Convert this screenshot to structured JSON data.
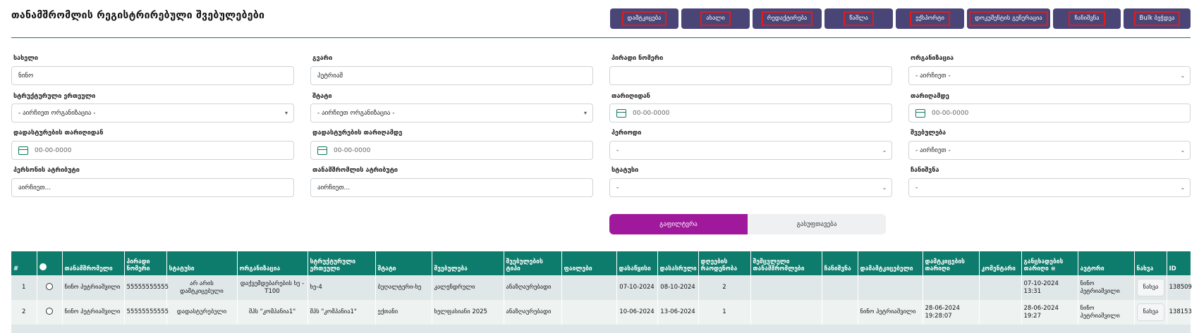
{
  "page": {
    "title": "თანამშრომლის რეგისტრირებული შვებულებები"
  },
  "toolbar": {
    "buttons": [
      {
        "label": "დამტკიცება"
      },
      {
        "label": "ახალი"
      },
      {
        "label": "რედაქტირება"
      },
      {
        "label": "წაშლა"
      },
      {
        "label": "ექსპორტი"
      },
      {
        "label": "დოკუმენტის გენერაცია"
      },
      {
        "label": "ჩანიშვნა"
      },
      {
        "label": "Bulk ბეჭდვა"
      }
    ]
  },
  "filters": {
    "first_name": {
      "label": "სახელი",
      "value": "ნინო"
    },
    "last_name": {
      "label": "გვარი",
      "value": "პეტრიაშ"
    },
    "personal_number": {
      "label": "პირადი ნომერი",
      "value": ""
    },
    "organization": {
      "label": "ორგანიზაცია",
      "value": "- აირჩიეთ -"
    },
    "structural_unit": {
      "label": "სტრუქტურული ერთეული",
      "value": "- აირჩიეთ ორგანიზაცია -"
    },
    "staff": {
      "label": "შტატი",
      "value": "- აირჩიეთ ორგანიზაცია -"
    },
    "date_from": {
      "label": "თარიღიდან",
      "placeholder": "00-00-0000"
    },
    "date_to": {
      "label": "თარიღამდე",
      "placeholder": "00-00-0000"
    },
    "confirm_date_from": {
      "label": "დადასტურების თარიღიდან",
      "placeholder": "00-00-0000"
    },
    "confirm_date_to": {
      "label": "დადასტურების თარიღამდე",
      "placeholder": "00-00-0000"
    },
    "period": {
      "label": "პერიოდი",
      "value": "-"
    },
    "vacation": {
      "label": "შვებულება",
      "value": "- აირჩიეთ -"
    },
    "person_attribute": {
      "label": "პერსონის ატრიბუტი",
      "value": "აირჩიეთ..."
    },
    "employee_attribute": {
      "label": "თანამშრომლის ატრიბუტი",
      "value": "აირჩიეთ..."
    },
    "status": {
      "label": "სტატუსი",
      "value": "-"
    },
    "note": {
      "label": "ჩანიშვნა",
      "value": "-"
    }
  },
  "actions": {
    "filter_label": "გაფილტვრა",
    "clear_label": "გასუფთავება"
  },
  "table": {
    "headers": [
      "#",
      "",
      "თანამშრომელი",
      "პირადი ნომერი",
      "სტატუსი",
      "ორგანიზაცია",
      "სტრუქტურული ერთეული",
      "შტატი",
      "შვებულება",
      "შვებულების ტიპი",
      "ფაილები",
      "დასაწყისი",
      "დასასრული",
      "დღეების რაოდენობა",
      "შემცვლელი თანამშრომლები",
      "ჩანიშვნა",
      "დამამტკიცებელი",
      "დამტკიცების თარიღი",
      "კომენტარი",
      "განცხადების თარიღი",
      "ავტორი",
      "ნახვა",
      "ID"
    ],
    "rows": [
      {
        "num": "1",
        "employee": "ნინო პეტრიაშვილი",
        "personal_number": "55555555555",
        "status": "არ არის დამტკიცებული",
        "status_color": "#e3261e",
        "organization": "დაქვემდებარების ხე -T100",
        "unit": "ხე-4",
        "staff": "ბუღალტერი-ხე",
        "vacation": "კალენდრული",
        "vacation_type": "ანაზღაურებადი",
        "files": "",
        "start": "07-10-2024",
        "end": "08-10-2024",
        "days": "2",
        "replacements": "",
        "note": "",
        "approver": "",
        "approve_date": "",
        "comment": "",
        "app_date": "07-10-2024 13:31",
        "author": "ნინო პეტრიაშვილი",
        "view": "ნახვა",
        "id": "138509"
      },
      {
        "num": "2",
        "employee": "ნინო პეტრიაშვილი",
        "personal_number": "55555555555",
        "status": "დადასტურებული",
        "status_color": "#1b9a2b",
        "organization": "შპს \"კომპანია1\"",
        "unit": "შპს \"კომპანია1\"",
        "staff": "ექთანი",
        "vacation": "ხელფასიანი 2025",
        "vacation_type": "ანაზღაურებადი",
        "files": "",
        "start": "10-06-2024",
        "end": "13-06-2024",
        "days": "1",
        "replacements": "",
        "note": "",
        "approver": "ნინო პეტრიაშვილი",
        "approve_date": "28-06-2024 19:28:07",
        "comment": "",
        "app_date": "28-06-2024 19:27",
        "author": "ნინო პეტრიაშვილი",
        "view": "ნახვა",
        "id": "138153"
      }
    ]
  },
  "colors": {
    "accent": "#0e7c6c",
    "toolbar_bg": "#4a4577",
    "filter_btn": "#a0189c",
    "highlight_border": "#e31b1b"
  }
}
